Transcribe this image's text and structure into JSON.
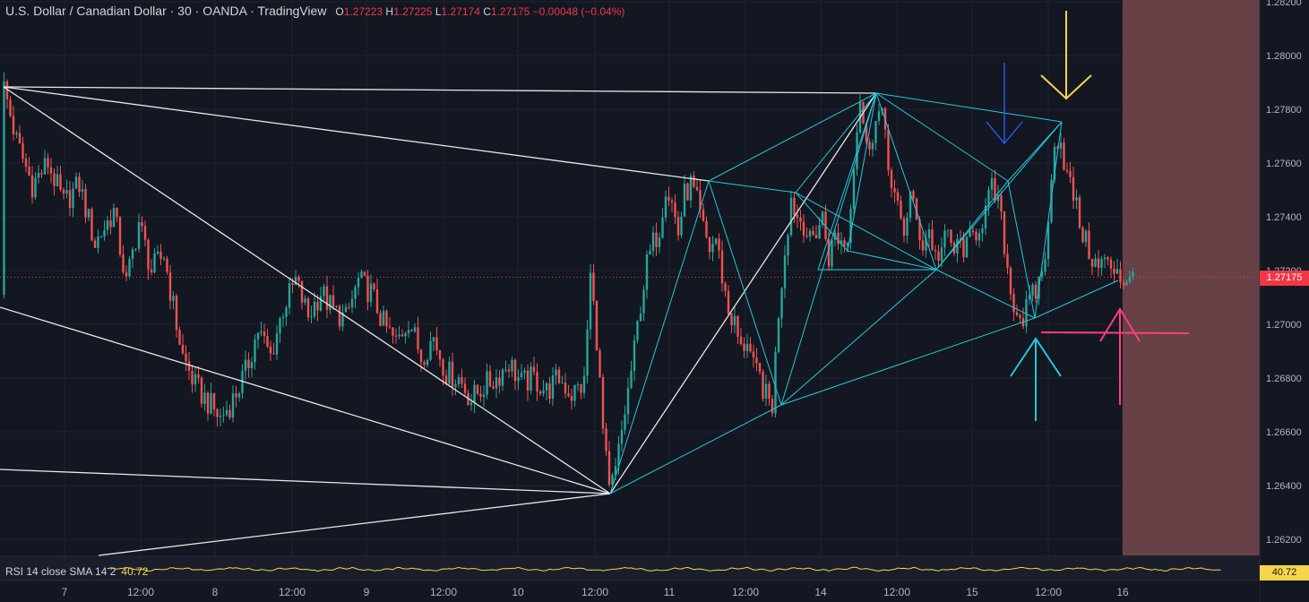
{
  "legend": {
    "symbol": "U.S. Dollar / Canadian Dollar · 30 · OANDA · TradingView",
    "open_label": "O",
    "open": "1.27223",
    "high_label": "H",
    "high": "1.27225",
    "low_label": "L",
    "low": "1.27174",
    "close_label": "C",
    "close": "1.27175",
    "change": "−0.00048 (−0.04%)"
  },
  "price_badge": "1.27175",
  "rsi_legend": {
    "label": "RSI 14 close SMA 14 2",
    "value": "40.72"
  },
  "rsi_badge": "40.72",
  "colors": {
    "background": "#131722",
    "up": "#26a69a",
    "down": "#ef5350",
    "pattern": "#26c6da",
    "trend": "#e8e8e8",
    "yellow_arrow": "#f7d54a",
    "blue_arrow": "#2962ff",
    "cyan_arrow": "#26c6da",
    "pink_arrow": "#ff3d7f",
    "price_line": "#f23645",
    "rsi": "#f7d54a",
    "shade": "#6b4349"
  },
  "chart_data": {
    "type": "candlestick",
    "symbol": "USDCAD",
    "interval": "30",
    "yaxis": {
      "ticks": [
        "1.28200",
        "1.28000",
        "1.27800",
        "1.27600",
        "1.27400",
        "1.27200",
        "1.27000",
        "1.26800",
        "1.26600",
        "1.26400",
        "1.26200"
      ],
      "ylim": [
        1.2613,
        1.282
      ]
    },
    "xaxis": {
      "ticks": [
        "7",
        "12:00",
        "8",
        "12:00",
        "9",
        "12:00",
        "10",
        "12:00",
        "11",
        "12:00",
        "14",
        "12:00",
        "15",
        "12:00",
        "16"
      ]
    },
    "last_price": 1.27175,
    "price_path": [
      [
        0,
        1.2711
      ],
      [
        1,
        1.2788
      ],
      [
        5,
        1.2768
      ],
      [
        10,
        1.2752
      ],
      [
        15,
        1.276
      ],
      [
        20,
        1.2745
      ],
      [
        25,
        1.2752
      ],
      [
        30,
        1.273
      ],
      [
        36,
        1.2742
      ],
      [
        40,
        1.2715
      ],
      [
        44,
        1.2738
      ],
      [
        48,
        1.272
      ],
      [
        52,
        1.2726
      ],
      [
        56,
        1.27
      ],
      [
        58,
        1.2688
      ],
      [
        62,
        1.2677
      ],
      [
        66,
        1.2671
      ],
      [
        70,
        1.2665
      ],
      [
        74,
        1.2672
      ],
      [
        78,
        1.2682
      ],
      [
        82,
        1.2698
      ],
      [
        86,
        1.2688
      ],
      [
        90,
        1.2706
      ],
      [
        94,
        1.2716
      ],
      [
        98,
        1.2703
      ],
      [
        102,
        1.2712
      ],
      [
        106,
        1.2705
      ],
      [
        110,
        1.2702
      ],
      [
        114,
        1.2716
      ],
      [
        118,
        1.2712
      ],
      [
        122,
        1.27
      ],
      [
        126,
        1.2693
      ],
      [
        130,
        1.2702
      ],
      [
        134,
        1.2688
      ],
      [
        138,
        1.2695
      ],
      [
        142,
        1.2682
      ],
      [
        146,
        1.268
      ],
      [
        150,
        1.2672
      ],
      [
        154,
        1.2677
      ],
      [
        158,
        1.268
      ],
      [
        162,
        1.2686
      ],
      [
        166,
        1.2678
      ],
      [
        170,
        1.268
      ],
      [
        174,
        1.2675
      ],
      [
        178,
        1.268
      ],
      [
        182,
        1.2674
      ],
      [
        186,
        1.2678
      ],
      [
        188,
        1.2718
      ],
      [
        190,
        1.2695
      ],
      [
        192,
        1.266
      ],
      [
        194,
        1.2637
      ],
      [
        196,
        1.2645
      ],
      [
        198,
        1.266
      ],
      [
        200,
        1.2675
      ],
      [
        202,
        1.269
      ],
      [
        204,
        1.2708
      ],
      [
        206,
        1.2722
      ],
      [
        208,
        1.273
      ],
      [
        210,
        1.2736
      ],
      [
        212,
        1.2752
      ],
      [
        214,
        1.2745
      ],
      [
        216,
        1.2734
      ],
      [
        218,
        1.2748
      ],
      [
        220,
        1.2752
      ],
      [
        222,
        1.2745
      ],
      [
        224,
        1.2735
      ],
      [
        226,
        1.2728
      ],
      [
        228,
        1.2732
      ],
      [
        230,
        1.2718
      ],
      [
        232,
        1.2705
      ],
      [
        234,
        1.27
      ],
      [
        236,
        1.269
      ],
      [
        238,
        1.2695
      ],
      [
        240,
        1.2683
      ],
      [
        242,
        1.268
      ],
      [
        244,
        1.2673
      ],
      [
        246,
        1.267
      ],
      [
        248,
        1.2705
      ],
      [
        250,
        1.2728
      ],
      [
        252,
        1.2747
      ],
      [
        254,
        1.274
      ],
      [
        256,
        1.2738
      ],
      [
        258,
        1.273
      ],
      [
        260,
        1.2735
      ],
      [
        262,
        1.274
      ],
      [
        264,
        1.2725
      ],
      [
        266,
        1.2733
      ],
      [
        268,
        1.2731
      ],
      [
        270,
        1.2731
      ],
      [
        272,
        1.2762
      ],
      [
        274,
        1.2785
      ],
      [
        276,
        1.2765
      ],
      [
        278,
        1.2772
      ],
      [
        280,
        1.2778
      ],
      [
        282,
        1.2773
      ],
      [
        284,
        1.275
      ],
      [
        286,
        1.2742
      ],
      [
        288,
        1.2735
      ],
      [
        290,
        1.2748
      ],
      [
        292,
        1.2738
      ],
      [
        294,
        1.273
      ],
      [
        296,
        1.2735
      ],
      [
        298,
        1.2725
      ],
      [
        300,
        1.2728
      ],
      [
        302,
        1.2733
      ],
      [
        304,
        1.2727
      ],
      [
        306,
        1.273
      ],
      [
        308,
        1.2728
      ],
      [
        310,
        1.2733
      ],
      [
        312,
        1.2737
      ],
      [
        314,
        1.2742
      ],
      [
        316,
        1.275
      ],
      [
        318,
        1.2745
      ],
      [
        320,
        1.273
      ],
      [
        322,
        1.2712
      ],
      [
        324,
        1.2705
      ],
      [
        326,
        1.2702
      ],
      [
        328,
        1.2708
      ],
      [
        330,
        1.2712
      ],
      [
        332,
        1.272
      ],
      [
        334,
        1.2735
      ],
      [
        336,
        1.277
      ],
      [
        338,
        1.2768
      ],
      [
        340,
        1.2755
      ],
      [
        342,
        1.2748
      ],
      [
        344,
        1.2738
      ],
      [
        346,
        1.273
      ],
      [
        348,
        1.2725
      ],
      [
        350,
        1.272
      ],
      [
        352,
        1.2725
      ],
      [
        354,
        1.2718
      ],
      [
        356,
        1.2722
      ],
      [
        358,
        1.2715
      ],
      [
        360,
        1.272
      ],
      [
        361,
        1.27175
      ]
    ]
  },
  "rsi_data": {
    "type": "line",
    "name": "RSI 14 close SMA 14 2",
    "last": 40.72,
    "range": [
      0,
      100
    ]
  }
}
